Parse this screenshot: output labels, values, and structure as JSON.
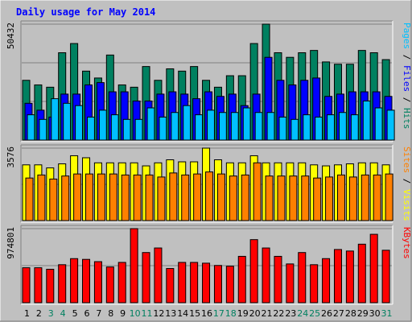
{
  "chart_data": {
    "type": "bar",
    "title": "Daily usage for May 2014",
    "days": [
      "1",
      "2",
      "3",
      "4",
      "5",
      "6",
      "7",
      "8",
      "9",
      "10",
      "11",
      "12",
      "13",
      "14",
      "15",
      "16",
      "17",
      "18",
      "19",
      "20",
      "21",
      "22",
      "23",
      "24",
      "25",
      "26",
      "27",
      "28",
      "29",
      "30",
      "31"
    ],
    "weekend_days": [
      "3",
      "4",
      "10",
      "11",
      "17",
      "18",
      "24",
      "25",
      "31"
    ],
    "panels": [
      {
        "id": "traffic",
        "max_label": "50432",
        "ymax": 50432,
        "right_label": [
          "Pages",
          "/",
          "Files",
          "/",
          "Hits"
        ],
        "right_label_colors": [
          "#00c0ff",
          "#000000",
          "#0000ff",
          "#000000",
          "#008060"
        ],
        "series": [
          {
            "name": "Hits",
            "color": "#008060",
            "values": [
              26000,
              24000,
              23000,
              38000,
              42000,
              30000,
              27000,
              37000,
              24000,
              23000,
              32000,
              26000,
              31000,
              30000,
              32000,
              26000,
              23000,
              28000,
              28000,
              42000,
              50432,
              38000,
              36000,
              38000,
              39000,
              34000,
              33000,
              33000,
              39000,
              38000,
              35000
            ]
          },
          {
            "name": "Files",
            "color": "#0000ff",
            "values": [
              16000,
              13000,
              10000,
              20000,
              20000,
              24000,
              25000,
              21000,
              21000,
              17000,
              17000,
              20000,
              21000,
              20000,
              18000,
              21000,
              19000,
              20000,
              15000,
              20000,
              36000,
              26000,
              24000,
              26000,
              27000,
              19000,
              20000,
              21000,
              21000,
              21000,
              19000
            ]
          },
          {
            "name": "Pages",
            "color": "#00c0ff",
            "values": [
              11000,
              9000,
              18000,
              16000,
              15000,
              10000,
              13000,
              11000,
              9000,
              9000,
              14000,
              10000,
              12000,
              15000,
              11000,
              13000,
              12000,
              12000,
              14000,
              12000,
              12000,
              10000,
              9000,
              11000,
              10000,
              11000,
              12000,
              11000,
              17000,
              14000,
              13000
            ]
          }
        ]
      },
      {
        "id": "visits",
        "max_label": "3576",
        "ymax": 3576,
        "right_label": [
          "Sites",
          "/",
          "Visits"
        ],
        "right_label_colors": [
          "#ff8000",
          "#000000",
          "#ffff00"
        ],
        "series": [
          {
            "name": "Visits",
            "color": "#ffff00",
            "values": [
              2750,
              2750,
              2600,
              2800,
              3200,
              3100,
              2850,
              2850,
              2850,
              2850,
              2700,
              2850,
              3000,
              2900,
              2900,
              3576,
              3000,
              2850,
              2850,
              3200,
              2850,
              2850,
              2850,
              2850,
              2750,
              2700,
              2750,
              2800,
              2850,
              2850,
              2750
            ]
          },
          {
            "name": "Sites",
            "color": "#ff8000",
            "values": [
              2100,
              2250,
              2050,
              2200,
              2300,
              2300,
              2300,
              2300,
              2250,
              2250,
              2250,
              2150,
              2350,
              2250,
              2300,
              2400,
              2300,
              2200,
              2250,
              2850,
              2200,
              2200,
              2200,
              2200,
              2100,
              2150,
              2250,
              2150,
              2250,
              2250,
              2300
            ]
          }
        ]
      },
      {
        "id": "kbytes",
        "max_label": "974801",
        "ymax": 974801,
        "right_label": [
          "KBytes"
        ],
        "right_label_colors": [
          "#ff0000"
        ],
        "series": [
          {
            "name": "KBytes",
            "color": "#ff0000",
            "values": [
              460000,
              460000,
              440000,
              500000,
              580000,
              570000,
              540000,
              470000,
              530000,
              974801,
              660000,
              720000,
              450000,
              530000,
              530000,
              520000,
              490000,
              480000,
              610000,
              830000,
              720000,
              610000,
              510000,
              660000,
              500000,
              580000,
              700000,
              680000,
              770000,
              900000,
              690000
            ]
          }
        ]
      }
    ]
  },
  "colors": {
    "background": "#c0c0c0",
    "plot_bg": "#c0c0c0",
    "frame_dark": "#808080",
    "frame_light": "#ffffff",
    "gridline": "#808080",
    "title_color": "#0000ff",
    "weekday_label": "#000000",
    "weekend_label": "#008060"
  }
}
